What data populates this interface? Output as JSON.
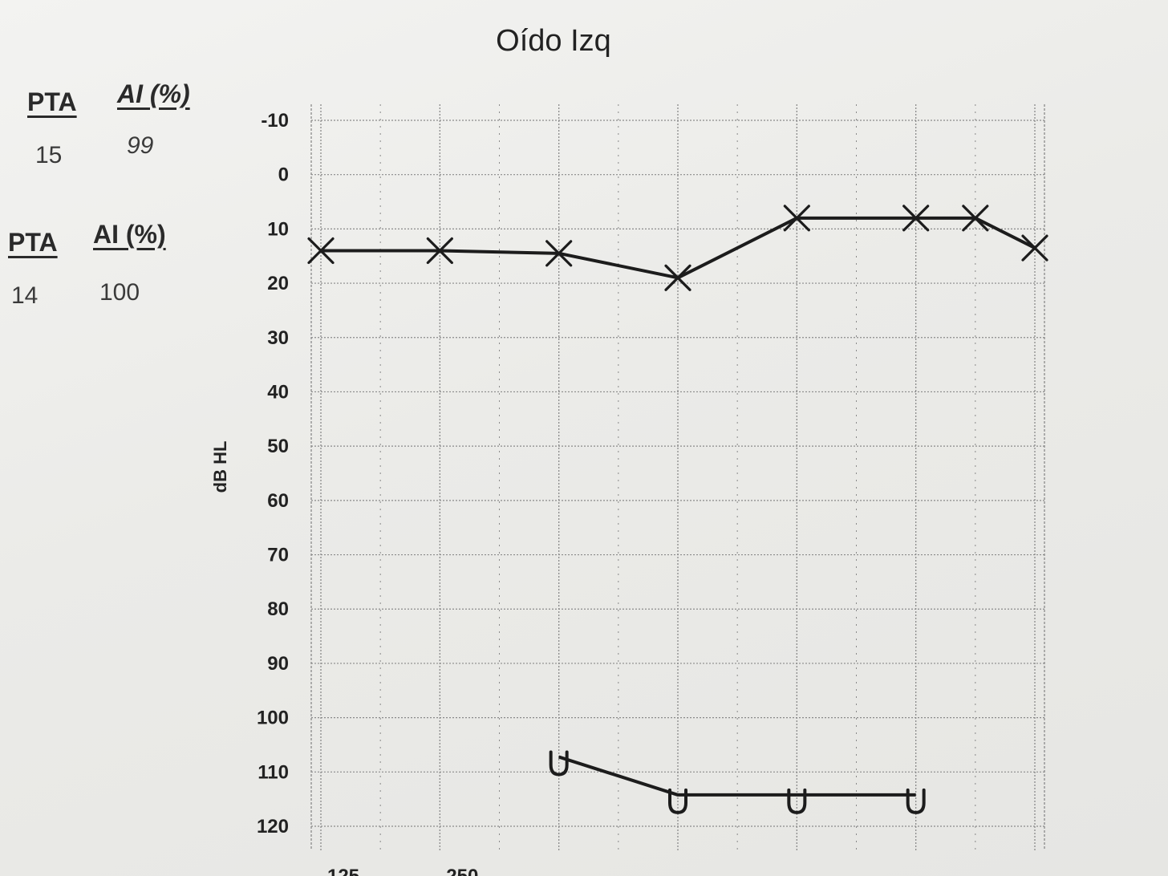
{
  "chart_data": {
    "type": "line",
    "title": "Oído Izq",
    "xlabel": "",
    "ylabel": "dB HL",
    "ylim": [
      -10,
      120
    ],
    "y_reversed": true,
    "grid": true,
    "yticks": [
      "-10",
      "0",
      "10",
      "20",
      "30",
      "40",
      "50",
      "60",
      "70",
      "80",
      "90",
      "100",
      "110",
      "120"
    ],
    "xticks_partial": [
      "125",
      "250"
    ],
    "x_columns": 12,
    "series": [
      {
        "marker": "x",
        "x_index": [
          0,
          2,
          4,
          6,
          8,
          10,
          11,
          12
        ],
        "values": [
          14,
          14,
          14.5,
          19,
          8,
          8,
          8,
          13.5
        ]
      },
      {
        "marker": "u",
        "x_index": [
          4,
          6,
          8,
          10
        ],
        "values": [
          109,
          116,
          116,
          116
        ]
      }
    ]
  },
  "summary": {
    "row1": {
      "pta_label": "PTA",
      "ai_label": "AI (%)",
      "pta_value": "15",
      "ai_value": "99"
    },
    "row2": {
      "pta_label": "PTA",
      "ai_label": "AI (%)",
      "pta_value": "14",
      "ai_value": "100"
    }
  },
  "colors": {
    "line": "#1c1c1c",
    "grid": "#8a8a8a",
    "paper": "#eeeeec"
  }
}
